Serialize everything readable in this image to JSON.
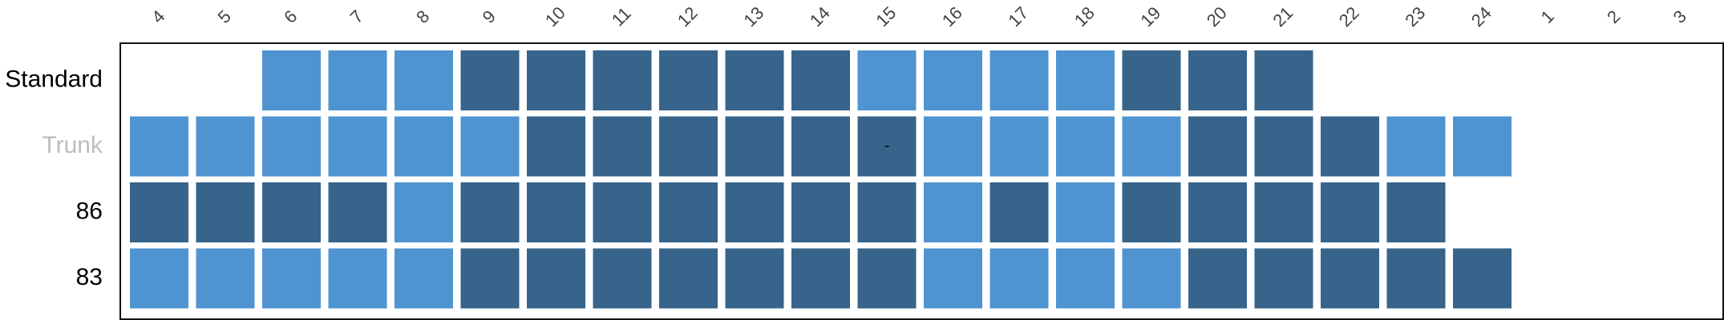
{
  "chart_data": {
    "type": "heatmap",
    "columns": [
      "4",
      "5",
      "6",
      "7",
      "8",
      "9",
      "10",
      "11",
      "12",
      "13",
      "14",
      "15",
      "16",
      "17",
      "18",
      "19",
      "20",
      "21",
      "22",
      "23",
      "24",
      "1",
      "2",
      "3"
    ],
    "rows": [
      {
        "label": "Standard",
        "label_color": "#000000",
        "cells": [
          null,
          null,
          "L",
          "L",
          "L",
          "D",
          "D",
          "D",
          "D",
          "D",
          "D",
          "L",
          "L",
          "L",
          "L",
          "D",
          "D",
          "D",
          null,
          null,
          null,
          null,
          null,
          null
        ]
      },
      {
        "label": "Trunk",
        "label_color": "#bdbdbd",
        "cells": [
          "L",
          "L",
          "L",
          "L",
          "L",
          "L",
          "D",
          "D",
          "D",
          "D",
          "D",
          "D",
          "L",
          "L",
          "L",
          "L",
          "D",
          "D",
          "D",
          "L",
          "L",
          null,
          null,
          null
        ]
      },
      {
        "label": "86",
        "label_color": "#000000",
        "cells": [
          "D",
          "D",
          "D",
          "D",
          "L",
          "D",
          "D",
          "D",
          "D",
          "D",
          "D",
          "D",
          "L",
          "D",
          "L",
          "D",
          "D",
          "D",
          "D",
          "D",
          null,
          null,
          null,
          null
        ]
      },
      {
        "label": "83",
        "label_color": "#000000",
        "cells": [
          "L",
          "L",
          "L",
          "L",
          "L",
          "D",
          "D",
          "D",
          "D",
          "D",
          "D",
          "D",
          "L",
          "L",
          "L",
          "L",
          "D",
          "D",
          "D",
          "D",
          "D",
          null,
          null,
          null
        ]
      }
    ],
    "cell_annotations": [
      {
        "row": "Trunk",
        "column": "15",
        "text": "-"
      }
    ],
    "colors": {
      "L": "#4f94d0",
      "D": "#36648b"
    },
    "legend": "none",
    "grid": false
  }
}
